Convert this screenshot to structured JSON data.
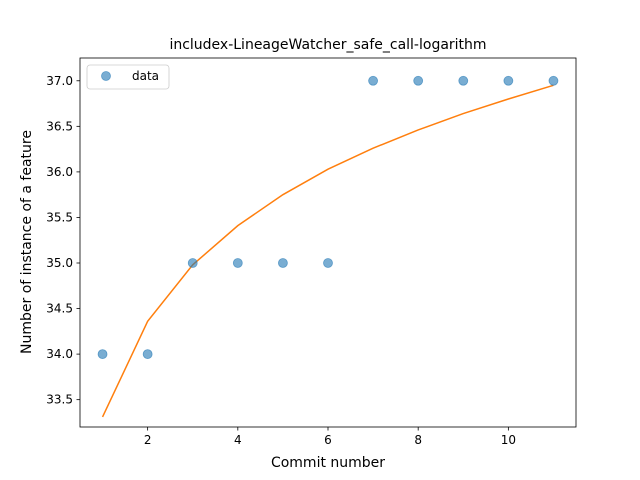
{
  "chart_data": {
    "type": "scatter",
    "title": "includex-LineageWatcher_safe_call-logarithm",
    "xlabel": "Commit number",
    "ylabel": "Number of instance of a feature",
    "xlim": [
      0.5,
      11.5
    ],
    "ylim": [
      33.2,
      37.25
    ],
    "xticks": [
      2,
      4,
      6,
      8,
      10
    ],
    "xtick_labels": [
      "2",
      "4",
      "6",
      "8",
      "10"
    ],
    "yticks": [
      33.5,
      34.0,
      34.5,
      35.0,
      35.5,
      36.0,
      36.5,
      37.0
    ],
    "ytick_labels": [
      "33.5",
      "34.0",
      "34.5",
      "35.0",
      "35.5",
      "36.0",
      "36.5",
      "37.0"
    ],
    "grid": false,
    "legend_position": "top-left",
    "series": [
      {
        "name": "data",
        "kind": "scatter",
        "color": "#1f77b4",
        "x": [
          1,
          2,
          3,
          4,
          5,
          6,
          7,
          8,
          9,
          10,
          11
        ],
        "y": [
          34,
          34,
          35,
          35,
          35,
          35,
          37,
          37,
          37,
          37,
          37
        ]
      },
      {
        "kind": "line",
        "color": "#ff7f0e",
        "x": [
          1,
          2,
          3,
          4,
          5,
          6,
          7,
          8,
          9,
          10,
          11
        ],
        "y": [
          33.31,
          34.36,
          34.98,
          35.41,
          35.75,
          36.03,
          36.26,
          36.46,
          36.64,
          36.8,
          36.95
        ]
      }
    ]
  }
}
